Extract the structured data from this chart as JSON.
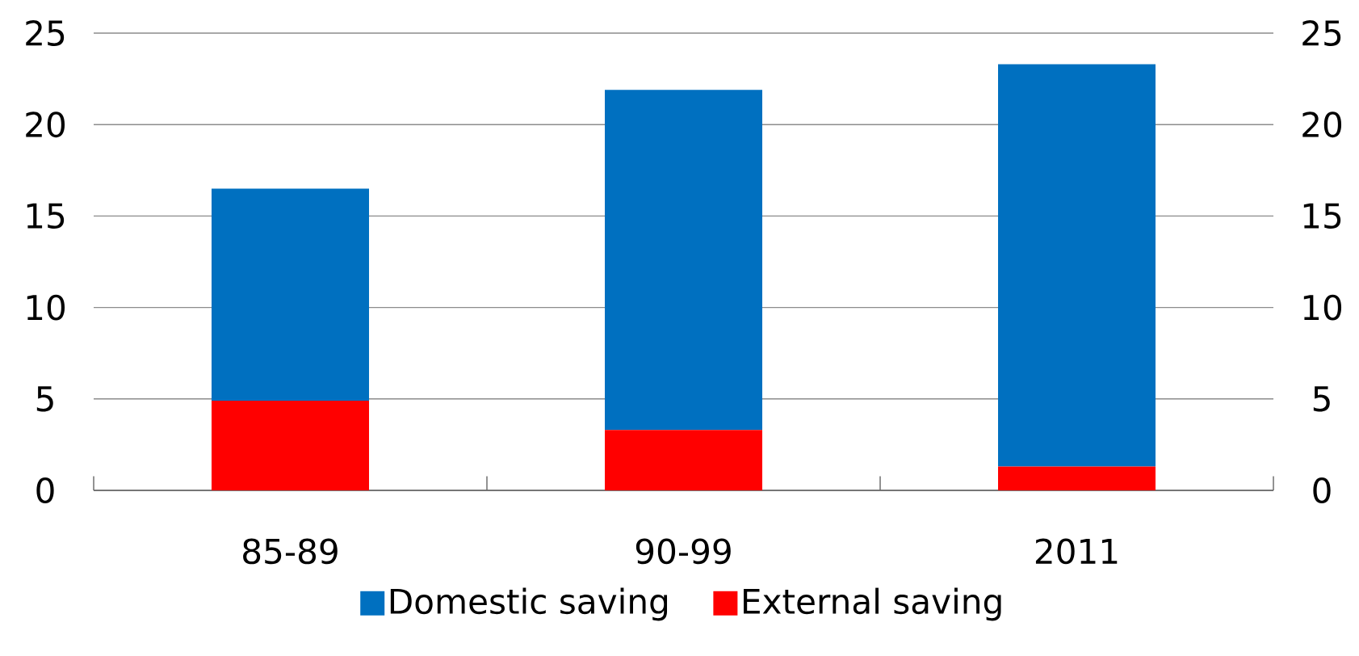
{
  "chart_data": {
    "type": "bar",
    "stacked": true,
    "categories": [
      "85-89",
      "90-99",
      "2011"
    ],
    "series": [
      {
        "name": "External saving",
        "color": "#ff0000",
        "values": [
          4.9,
          3.3,
          1.3
        ]
      },
      {
        "name": "Domestic saving",
        "color": "#0070c0",
        "values": [
          11.6,
          18.6,
          22.0
        ]
      }
    ],
    "ylim": [
      0,
      25
    ],
    "yticks": [
      0,
      5,
      10,
      15,
      20,
      25
    ],
    "y2lim": [
      0,
      25
    ],
    "y2ticks": [
      0,
      5,
      10,
      15,
      20,
      25
    ],
    "grid": "y",
    "legend": "bottom"
  }
}
